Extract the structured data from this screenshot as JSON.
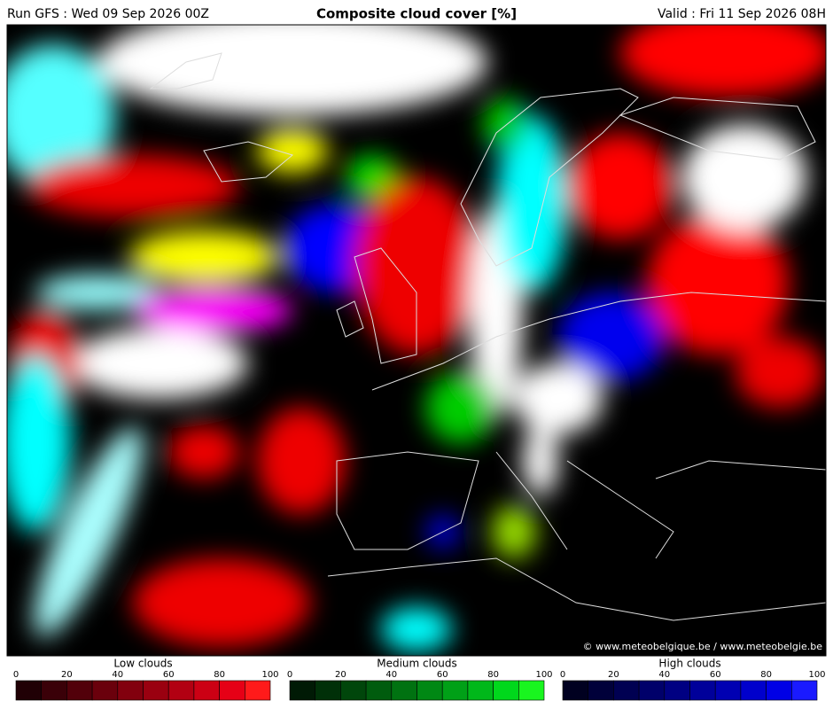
{
  "header": {
    "run": "Run GFS : Wed 09 Sep 2026 00Z",
    "title": "Composite cloud cover [%]",
    "valid": "Valid : Fri 11 Sep 2026 08H"
  },
  "credit": "© www.meteobelgique.be / www.meteobelgie.be",
  "legends": [
    {
      "title": "Low clouds",
      "ticks": [
        0,
        20,
        40,
        60,
        80,
        100
      ],
      "colors": [
        "#200005",
        "#3a0008",
        "#52000a",
        "#6a000c",
        "#82000e",
        "#9a0010",
        "#b20012",
        "#cc0014",
        "#e60016",
        "#ff1a1a"
      ]
    },
    {
      "title": "Medium clouds",
      "ticks": [
        0,
        20,
        40,
        60,
        80,
        100
      ],
      "colors": [
        "#001a05",
        "#003008",
        "#00460b",
        "#005c0e",
        "#007211",
        "#008814",
        "#00a017",
        "#00b81a",
        "#00d81c",
        "#19f51f"
      ]
    },
    {
      "title": "High clouds",
      "ticks": [
        0,
        20,
        40,
        60,
        80,
        100
      ],
      "colors": [
        "#000020",
        "#00003a",
        "#000052",
        "#00006a",
        "#000082",
        "#00009a",
        "#0000b2",
        "#0000cc",
        "#0000e6",
        "#1a1aff"
      ]
    }
  ]
}
